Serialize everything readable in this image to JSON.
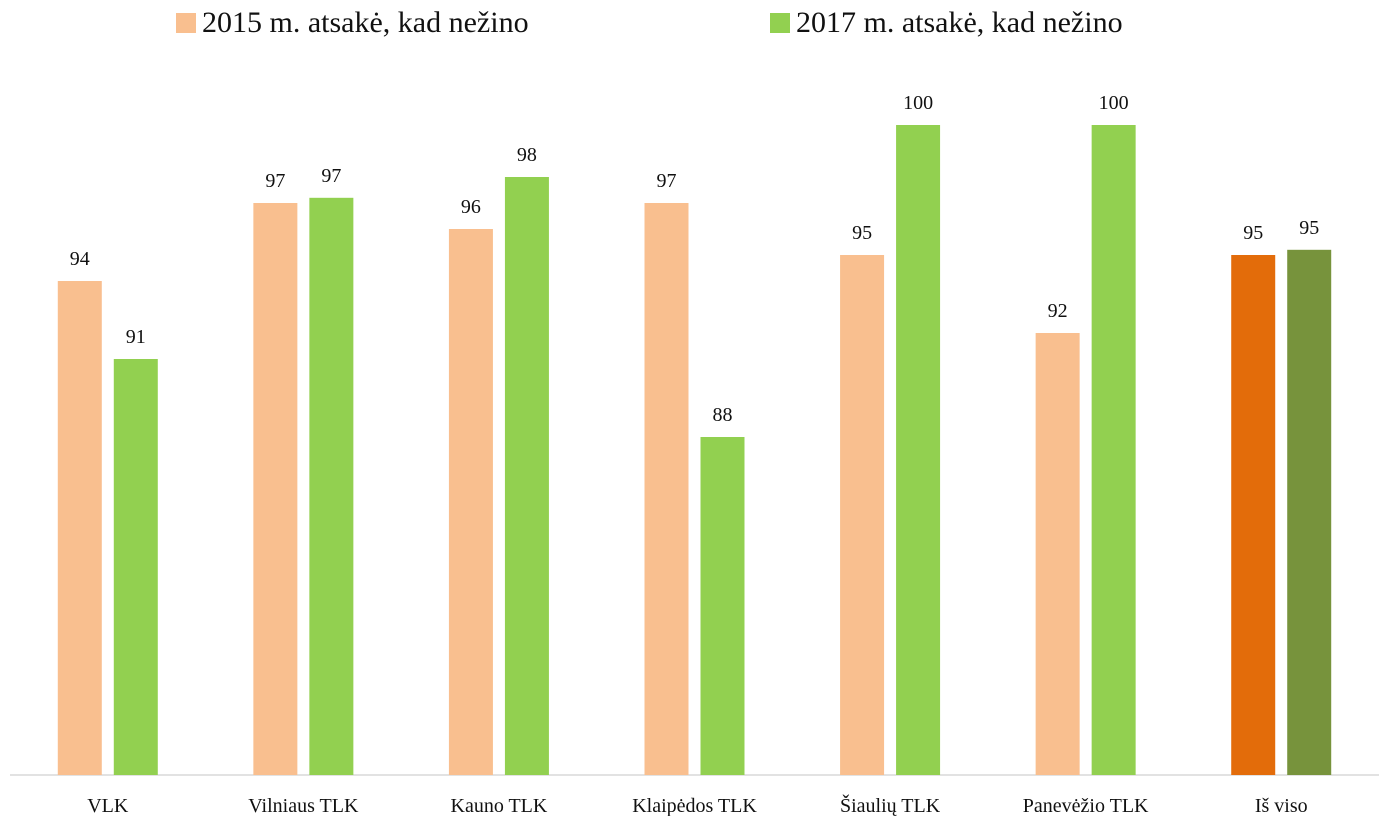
{
  "chart_data": {
    "type": "bar",
    "categories": [
      "VLK",
      "Vilniaus TLK",
      "Kauno TLK",
      "Klaipėdos TLK",
      "Šiaulių TLK",
      "Panevėžio TLK",
      "Iš viso"
    ],
    "series": [
      {
        "name": "2015 m. atsakė, kad nežino",
        "values": [
          94,
          97,
          96,
          97,
          95,
          92,
          95
        ],
        "labels": [
          "94",
          "97",
          "96",
          "97",
          "95",
          "92",
          "95"
        ],
        "color": "#F9BF8F",
        "highlight_color": "#E36C0A"
      },
      {
        "name": "2017 m. atsakė, kad nežino",
        "values": [
          91,
          97.2,
          98,
          88,
          100,
          100,
          95.2
        ],
        "labels": [
          "91",
          "97",
          "98",
          "88",
          "100",
          "100",
          "95"
        ],
        "color": "#92D050",
        "highlight_color": "#77933C"
      }
    ],
    "highlight_category": "Iš viso",
    "ylim": [
      75,
      100
    ],
    "grid": false,
    "legend_position": "top",
    "axis_color": "#D9D9D9",
    "title": "",
    "xlabel": "",
    "ylabel": ""
  }
}
